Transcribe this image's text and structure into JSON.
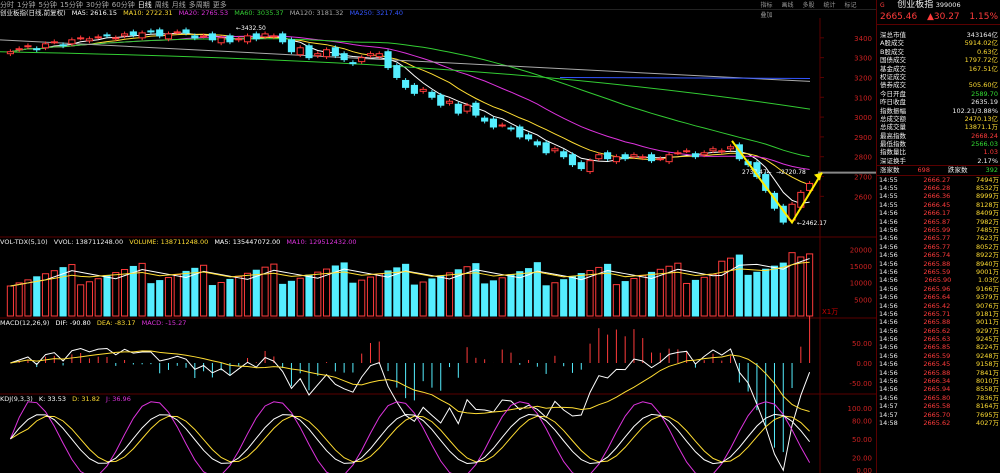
{
  "timeframes": [
    "分时",
    "1分钟",
    "5分钟",
    "15分钟",
    "30分钟",
    "60分钟",
    "日线",
    "周线",
    "月线",
    "多周期",
    "更多"
  ],
  "active_timeframe": "日线",
  "tools": [
    "指标",
    "画线",
    "多股",
    "统计",
    "标记",
    "叠加"
  ],
  "main_legend": {
    "title": "创业板指(日线,前复权)",
    "ma5": "MA5: 2616.15",
    "ma10": "MA10: 2722.31",
    "ma20": "MA20: 2765.53",
    "ma60": "MA60: 3035.37",
    "ma120": "MA120: 3181.32",
    "ma250": "MA250: 3217.40"
  },
  "price_axis": [
    "3400",
    "3300",
    "3200",
    "3100",
    "3000",
    "2900",
    "2800",
    "2700",
    "2600"
  ],
  "annotations": {
    "high": "3432.50",
    "mid_low": "2737.47",
    "mid_high": "2720.78",
    "low": "2462.17"
  },
  "vol_legend": {
    "title": "VOL-TDX(5,10)",
    "vvol": "VVOL: 138711248.00",
    "volume": "VOLUME: 138711248.00",
    "ma5": "MA5: 135447072.00",
    "ma10": "MA10: 129512432.00"
  },
  "vol_axis": [
    "20000",
    "15000",
    "10000",
    "5000"
  ],
  "vol_unit": "X1万",
  "macd_legend": {
    "title": "MACD(12,26,9)",
    "dif": "DIF: -90.80",
    "dea": "DEA: -83.17",
    "macd": "MACD: -15.27"
  },
  "macd_axis": [
    "50.00",
    "0.00",
    "-50.00"
  ],
  "kdj_legend": {
    "title": "KDJ(9,3,3)",
    "k": "K: 33.53",
    "d": "D: 31.82",
    "j": "J: 36.96"
  },
  "kdj_axis": [
    "100.00",
    "80.00",
    "50.00",
    "20.00",
    "0.00"
  ],
  "colors": {
    "up": "#ff3b3b",
    "down": "#55eeff",
    "ma5": "#ffffff",
    "ma10": "#ffdd33",
    "ma20": "#dd33dd",
    "ma60": "#33cc33",
    "ma120": "#aaaaaa",
    "ma250": "#3355ff",
    "arrow": "#ffee00"
  },
  "quote": {
    "index_name": "创业板指",
    "code": "399006",
    "price": "2665.46",
    "change": "▲30.27",
    "pct": "1.15%"
  },
  "stats": [
    {
      "label": "深总市值",
      "value": "343164亿",
      "color": "white"
    },
    {
      "label": "A股成交",
      "value": "5914.02亿",
      "color": "yellow"
    },
    {
      "label": "B股成交",
      "value": "0.63亿",
      "color": "yellow"
    },
    {
      "label": "国债成交",
      "value": "1797.72亿",
      "color": "yellow"
    },
    {
      "label": "基金成交",
      "value": "167.51亿",
      "color": "yellow"
    },
    {
      "label": "权证成交",
      "value": "",
      "color": "yellow"
    },
    {
      "label": "债券成交",
      "value": "505.60亿",
      "color": "yellow"
    },
    {
      "label": "今日开盘",
      "value": "2589.70",
      "color": "green"
    },
    {
      "label": "昨日收盘",
      "value": "2635.19",
      "color": "white"
    },
    {
      "label": "指数振幅",
      "value": "102.21/3.88%",
      "color": "white"
    },
    {
      "label": "总成交额",
      "value": "2470.13亿",
      "color": "yellow"
    },
    {
      "label": "总成交量",
      "value": "13871.1万",
      "color": "yellow"
    },
    {
      "label": "最高指数",
      "value": "2668.24",
      "color": "red"
    },
    {
      "label": "最低指数",
      "value": "2566.03",
      "color": "green"
    },
    {
      "label": "指数量比",
      "value": "1.03",
      "color": "red"
    },
    {
      "label": "深证换手",
      "value": "2.17%",
      "color": "white"
    }
  ],
  "breadth": {
    "up_label": "涨家数",
    "up": "698",
    "down_label": "跌家数",
    "down": "392"
  },
  "ticks": [
    [
      "14:55",
      "2666.27",
      "7494万"
    ],
    [
      "14:55",
      "2666.28",
      "8532万"
    ],
    [
      "14:55",
      "2666.36",
      "8999万"
    ],
    [
      "14:55",
      "2666.45",
      "8128万"
    ],
    [
      "14:56",
      "2666.17",
      "8409万"
    ],
    [
      "14:56",
      "2665.87",
      "7982万"
    ],
    [
      "14:56",
      "2665.99",
      "7485万"
    ],
    [
      "14:56",
      "2665.77",
      "7623万"
    ],
    [
      "14:56",
      "2665.77",
      "8052万"
    ],
    [
      "14:56",
      "2665.74",
      "8922万"
    ],
    [
      "14:56",
      "2665.88",
      "8940万"
    ],
    [
      "14:56",
      "2665.59",
      "9001万"
    ],
    [
      "14:56",
      "2665.90",
      "1.03亿"
    ],
    [
      "14:56",
      "2665.96",
      "9166万"
    ],
    [
      "14:56",
      "2665.64",
      "9379万"
    ],
    [
      "14:56",
      "2665.42",
      "9076万"
    ],
    [
      "14:56",
      "2665.71",
      "9181万"
    ],
    [
      "14:56",
      "2665.88",
      "9011万"
    ],
    [
      "14:56",
      "2665.62",
      "9297万"
    ],
    [
      "14:56",
      "2665.63",
      "9245万"
    ],
    [
      "14:56",
      "2665.85",
      "8224万"
    ],
    [
      "14:56",
      "2665.59",
      "9248万"
    ],
    [
      "14:56",
      "2665.45",
      "9158万"
    ],
    [
      "14:56",
      "2665.88",
      "7841万"
    ],
    [
      "14:56",
      "2666.34",
      "8010万"
    ],
    [
      "14:56",
      "2665.94",
      "8558万"
    ],
    [
      "14:56",
      "2665.80",
      "7836万"
    ],
    [
      "14:57",
      "2665.58",
      "8164万"
    ],
    [
      "14:57",
      "2665.70",
      "7695万"
    ],
    [
      "14:58",
      "2665.62",
      "4027万"
    ]
  ],
  "ticker_tag": "G"
}
